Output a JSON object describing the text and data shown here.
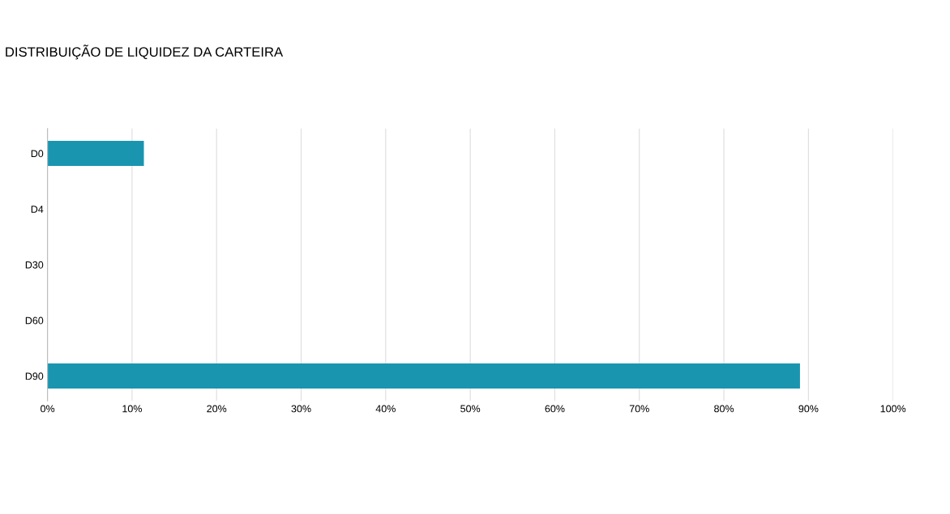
{
  "chart_data": {
    "type": "bar",
    "orientation": "horizontal",
    "title": "DISTRIBUIÇÃO DE LIQUIDEZ DA CARTEIRA",
    "categories": [
      "D0",
      "D4",
      "D30",
      "D60",
      "D90"
    ],
    "values": [
      11.4,
      0,
      0,
      0,
      89
    ],
    "color": "#1a95b0",
    "xlim": [
      0,
      100
    ],
    "xticks": [
      {
        "value": 0,
        "label": "0%"
      },
      {
        "value": 10,
        "label": "10%"
      },
      {
        "value": 20,
        "label": "20%"
      },
      {
        "value": 30,
        "label": "30%"
      },
      {
        "value": 40,
        "label": "40%"
      },
      {
        "value": 50,
        "label": "50%"
      },
      {
        "value": 60,
        "label": "60%"
      },
      {
        "value": 70,
        "label": "70%"
      },
      {
        "value": 80,
        "label": "80%"
      },
      {
        "value": 90,
        "label": "90%"
      },
      {
        "value": 100,
        "label": "100%"
      }
    ],
    "grid": "x"
  }
}
